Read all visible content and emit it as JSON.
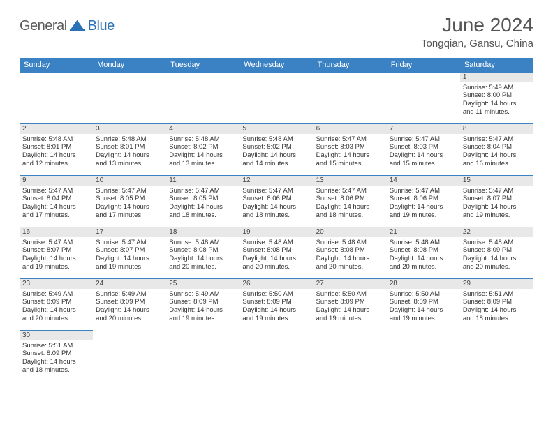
{
  "logo": {
    "part1": "General",
    "part2": "Blue"
  },
  "header": {
    "title": "June 2024",
    "location": "Tongqian, Gansu, China"
  },
  "colors": {
    "header_bg": "#3b82c4",
    "header_text": "#ffffff",
    "daynum_bg": "#e8e8e8",
    "row_divider": "#3b82c4",
    "logo_gray": "#5a5a5a",
    "logo_blue": "#2a71b8"
  },
  "weekdays": [
    "Sunday",
    "Monday",
    "Tuesday",
    "Wednesday",
    "Thursday",
    "Friday",
    "Saturday"
  ],
  "weeks": [
    {
      "days": [
        null,
        null,
        null,
        null,
        null,
        null,
        {
          "n": "1",
          "sr": "5:49 AM",
          "ss": "8:00 PM",
          "dl": "14 hours and 11 minutes."
        }
      ]
    },
    {
      "days": [
        {
          "n": "2",
          "sr": "5:48 AM",
          "ss": "8:01 PM",
          "dl": "14 hours and 12 minutes."
        },
        {
          "n": "3",
          "sr": "5:48 AM",
          "ss": "8:01 PM",
          "dl": "14 hours and 13 minutes."
        },
        {
          "n": "4",
          "sr": "5:48 AM",
          "ss": "8:02 PM",
          "dl": "14 hours and 13 minutes."
        },
        {
          "n": "5",
          "sr": "5:48 AM",
          "ss": "8:02 PM",
          "dl": "14 hours and 14 minutes."
        },
        {
          "n": "6",
          "sr": "5:47 AM",
          "ss": "8:03 PM",
          "dl": "14 hours and 15 minutes."
        },
        {
          "n": "7",
          "sr": "5:47 AM",
          "ss": "8:03 PM",
          "dl": "14 hours and 15 minutes."
        },
        {
          "n": "8",
          "sr": "5:47 AM",
          "ss": "8:04 PM",
          "dl": "14 hours and 16 minutes."
        }
      ]
    },
    {
      "days": [
        {
          "n": "9",
          "sr": "5:47 AM",
          "ss": "8:04 PM",
          "dl": "14 hours and 17 minutes."
        },
        {
          "n": "10",
          "sr": "5:47 AM",
          "ss": "8:05 PM",
          "dl": "14 hours and 17 minutes."
        },
        {
          "n": "11",
          "sr": "5:47 AM",
          "ss": "8:05 PM",
          "dl": "14 hours and 18 minutes."
        },
        {
          "n": "12",
          "sr": "5:47 AM",
          "ss": "8:06 PM",
          "dl": "14 hours and 18 minutes."
        },
        {
          "n": "13",
          "sr": "5:47 AM",
          "ss": "8:06 PM",
          "dl": "14 hours and 18 minutes."
        },
        {
          "n": "14",
          "sr": "5:47 AM",
          "ss": "8:06 PM",
          "dl": "14 hours and 19 minutes."
        },
        {
          "n": "15",
          "sr": "5:47 AM",
          "ss": "8:07 PM",
          "dl": "14 hours and 19 minutes."
        }
      ]
    },
    {
      "days": [
        {
          "n": "16",
          "sr": "5:47 AM",
          "ss": "8:07 PM",
          "dl": "14 hours and 19 minutes."
        },
        {
          "n": "17",
          "sr": "5:47 AM",
          "ss": "8:07 PM",
          "dl": "14 hours and 19 minutes."
        },
        {
          "n": "18",
          "sr": "5:48 AM",
          "ss": "8:08 PM",
          "dl": "14 hours and 20 minutes."
        },
        {
          "n": "19",
          "sr": "5:48 AM",
          "ss": "8:08 PM",
          "dl": "14 hours and 20 minutes."
        },
        {
          "n": "20",
          "sr": "5:48 AM",
          "ss": "8:08 PM",
          "dl": "14 hours and 20 minutes."
        },
        {
          "n": "21",
          "sr": "5:48 AM",
          "ss": "8:08 PM",
          "dl": "14 hours and 20 minutes."
        },
        {
          "n": "22",
          "sr": "5:48 AM",
          "ss": "8:09 PM",
          "dl": "14 hours and 20 minutes."
        }
      ]
    },
    {
      "days": [
        {
          "n": "23",
          "sr": "5:49 AM",
          "ss": "8:09 PM",
          "dl": "14 hours and 20 minutes."
        },
        {
          "n": "24",
          "sr": "5:49 AM",
          "ss": "8:09 PM",
          "dl": "14 hours and 20 minutes."
        },
        {
          "n": "25",
          "sr": "5:49 AM",
          "ss": "8:09 PM",
          "dl": "14 hours and 19 minutes."
        },
        {
          "n": "26",
          "sr": "5:50 AM",
          "ss": "8:09 PM",
          "dl": "14 hours and 19 minutes."
        },
        {
          "n": "27",
          "sr": "5:50 AM",
          "ss": "8:09 PM",
          "dl": "14 hours and 19 minutes."
        },
        {
          "n": "28",
          "sr": "5:50 AM",
          "ss": "8:09 PM",
          "dl": "14 hours and 19 minutes."
        },
        {
          "n": "29",
          "sr": "5:51 AM",
          "ss": "8:09 PM",
          "dl": "14 hours and 18 minutes."
        }
      ]
    },
    {
      "days": [
        {
          "n": "30",
          "sr": "5:51 AM",
          "ss": "8:09 PM",
          "dl": "14 hours and 18 minutes."
        },
        null,
        null,
        null,
        null,
        null,
        null
      ]
    }
  ],
  "labels": {
    "sunrise": "Sunrise:",
    "sunset": "Sunset:",
    "daylight": "Daylight:"
  }
}
